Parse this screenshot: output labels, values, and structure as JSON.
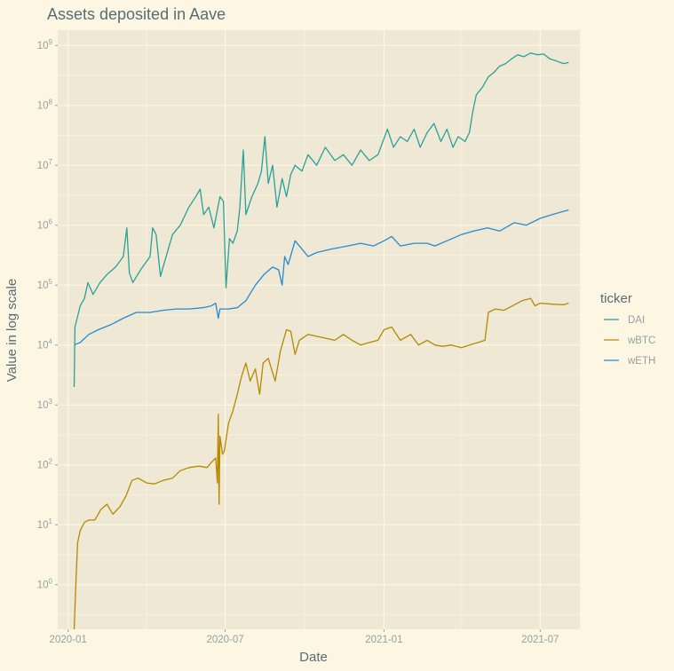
{
  "chart_data": {
    "type": "line",
    "title": "Assets deposited in Aave",
    "xlabel": "Date",
    "ylabel": "Value in log scale",
    "y_scale": "log10",
    "ylim": [
      0.18,
      1800000000
    ],
    "xlim": [
      "2019-12-20",
      "2021-08-16"
    ],
    "grid": true,
    "x_ticks": [
      "2020-01",
      "2020-07",
      "2021-01",
      "2021-07"
    ],
    "y_ticks": [
      {
        "base": "10",
        "exp": "0",
        "value": 1
      },
      {
        "base": "10",
        "exp": "1",
        "value": 10
      },
      {
        "base": "10",
        "exp": "2",
        "value": 100
      },
      {
        "base": "10",
        "exp": "3",
        "value": 1000
      },
      {
        "base": "10",
        "exp": "4",
        "value": 10000
      },
      {
        "base": "10",
        "exp": "5",
        "value": 100000
      },
      {
        "base": "10",
        "exp": "6",
        "value": 1000000
      },
      {
        "base": "10",
        "exp": "7",
        "value": 10000000
      },
      {
        "base": "10",
        "exp": "8",
        "value": 100000000
      },
      {
        "base": "10",
        "exp": "9",
        "value": 1000000000
      }
    ],
    "legend": {
      "title": "ticker",
      "position": "right"
    },
    "series": [
      {
        "name": "DAI",
        "color": "#2aa198",
        "points": [
          [
            "2020-01-08",
            2000
          ],
          [
            "2020-01-09",
            20000
          ],
          [
            "2020-01-12",
            30000
          ],
          [
            "2020-01-15",
            45000
          ],
          [
            "2020-01-20",
            60000
          ],
          [
            "2020-01-24",
            110000
          ],
          [
            "2020-01-30",
            70000
          ],
          [
            "2020-02-07",
            110000
          ],
          [
            "2020-02-15",
            150000
          ],
          [
            "2020-02-25",
            200000
          ],
          [
            "2020-03-05",
            300000
          ],
          [
            "2020-03-09",
            900000
          ],
          [
            "2020-03-12",
            160000
          ],
          [
            "2020-03-16",
            110000
          ],
          [
            "2020-03-25",
            180000
          ],
          [
            "2020-04-05",
            300000
          ],
          [
            "2020-04-08",
            900000
          ],
          [
            "2020-04-12",
            700000
          ],
          [
            "2020-04-17",
            140000
          ],
          [
            "2020-04-22",
            250000
          ],
          [
            "2020-05-01",
            700000
          ],
          [
            "2020-05-10",
            1000000
          ],
          [
            "2020-05-20",
            2000000
          ],
          [
            "2020-05-28",
            3000000
          ],
          [
            "2020-06-02",
            4000000
          ],
          [
            "2020-06-06",
            1500000
          ],
          [
            "2020-06-12",
            2000000
          ],
          [
            "2020-06-18",
            900000
          ],
          [
            "2020-06-25",
            3000000
          ],
          [
            "2020-06-29",
            2500000
          ],
          [
            "2020-07-02",
            90000
          ],
          [
            "2020-07-06",
            600000
          ],
          [
            "2020-07-10",
            500000
          ],
          [
            "2020-07-15",
            800000
          ],
          [
            "2020-07-18",
            2000000
          ],
          [
            "2020-07-22",
            18000000
          ],
          [
            "2020-07-25",
            1500000
          ],
          [
            "2020-08-01",
            3000000
          ],
          [
            "2020-08-08",
            5000000
          ],
          [
            "2020-08-12",
            8000000
          ],
          [
            "2020-08-16",
            30000000
          ],
          [
            "2020-08-20",
            5000000
          ],
          [
            "2020-08-25",
            10000000
          ],
          [
            "2020-08-30",
            2000000
          ],
          [
            "2020-09-05",
            6000000
          ],
          [
            "2020-09-10",
            3000000
          ],
          [
            "2020-09-15",
            7000000
          ],
          [
            "2020-09-20",
            10000000
          ],
          [
            "2020-09-28",
            8000000
          ],
          [
            "2020-10-05",
            15000000
          ],
          [
            "2020-10-15",
            10000000
          ],
          [
            "2020-10-25",
            20000000
          ],
          [
            "2020-11-05",
            12000000
          ],
          [
            "2020-11-15",
            15000000
          ],
          [
            "2020-11-25",
            10000000
          ],
          [
            "2020-12-05",
            18000000
          ],
          [
            "2020-12-15",
            12000000
          ],
          [
            "2020-12-25",
            15000000
          ],
          [
            "2021-01-05",
            40000000
          ],
          [
            "2021-01-12",
            20000000
          ],
          [
            "2021-01-20",
            30000000
          ],
          [
            "2021-01-28",
            25000000
          ],
          [
            "2021-02-05",
            40000000
          ],
          [
            "2021-02-12",
            20000000
          ],
          [
            "2021-02-20",
            35000000
          ],
          [
            "2021-02-28",
            50000000
          ],
          [
            "2021-03-08",
            25000000
          ],
          [
            "2021-03-15",
            40000000
          ],
          [
            "2021-03-22",
            20000000
          ],
          [
            "2021-03-28",
            30000000
          ],
          [
            "2021-04-05",
            25000000
          ],
          [
            "2021-04-10",
            35000000
          ],
          [
            "2021-04-14",
            80000000
          ],
          [
            "2021-04-18",
            150000000
          ],
          [
            "2021-04-25",
            200000000
          ],
          [
            "2021-05-02",
            300000000
          ],
          [
            "2021-05-08",
            350000000
          ],
          [
            "2021-05-15",
            450000000
          ],
          [
            "2021-05-22",
            500000000
          ],
          [
            "2021-05-29",
            600000000
          ],
          [
            "2021-06-05",
            700000000
          ],
          [
            "2021-06-12",
            650000000
          ],
          [
            "2021-06-20",
            750000000
          ],
          [
            "2021-06-28",
            700000000
          ],
          [
            "2021-07-05",
            720000000
          ],
          [
            "2021-07-12",
            600000000
          ],
          [
            "2021-07-20",
            550000000
          ],
          [
            "2021-07-28",
            500000000
          ],
          [
            "2021-08-03",
            520000000
          ]
        ]
      },
      {
        "name": "wBTC",
        "color": "#b58900",
        "points": [
          [
            "2020-01-08",
            0.18
          ],
          [
            "2020-01-10",
            1
          ],
          [
            "2020-01-12",
            5
          ],
          [
            "2020-01-15",
            8
          ],
          [
            "2020-01-20",
            11
          ],
          [
            "2020-01-25",
            12
          ],
          [
            "2020-02-01",
            12
          ],
          [
            "2020-02-08",
            18
          ],
          [
            "2020-02-15",
            22
          ],
          [
            "2020-02-22",
            15
          ],
          [
            "2020-03-01",
            20
          ],
          [
            "2020-03-08",
            30
          ],
          [
            "2020-03-15",
            55
          ],
          [
            "2020-03-22",
            60
          ],
          [
            "2020-04-01",
            50
          ],
          [
            "2020-04-10",
            48
          ],
          [
            "2020-04-20",
            55
          ],
          [
            "2020-05-01",
            60
          ],
          [
            "2020-05-10",
            80
          ],
          [
            "2020-05-20",
            90
          ],
          [
            "2020-06-01",
            95
          ],
          [
            "2020-06-10",
            90
          ],
          [
            "2020-06-15",
            110
          ],
          [
            "2020-06-20",
            130
          ],
          [
            "2020-06-22",
            50
          ],
          [
            "2020-06-23",
            700
          ],
          [
            "2020-06-24",
            22
          ],
          [
            "2020-06-25",
            300
          ],
          [
            "2020-06-28",
            150
          ],
          [
            "2020-06-30",
            170
          ],
          [
            "2020-07-05",
            500
          ],
          [
            "2020-07-10",
            800
          ],
          [
            "2020-07-15",
            1500
          ],
          [
            "2020-07-20",
            3000
          ],
          [
            "2020-07-25",
            5000
          ],
          [
            "2020-07-30",
            2500
          ],
          [
            "2020-08-05",
            4000
          ],
          [
            "2020-08-10",
            1500
          ],
          [
            "2020-08-14",
            5000
          ],
          [
            "2020-08-20",
            6000
          ],
          [
            "2020-08-28",
            2500
          ],
          [
            "2020-09-03",
            8000
          ],
          [
            "2020-09-10",
            18000
          ],
          [
            "2020-09-15",
            17000
          ],
          [
            "2020-09-20",
            7000
          ],
          [
            "2020-09-25",
            12000
          ],
          [
            "2020-10-05",
            15000
          ],
          [
            "2020-10-15",
            14000
          ],
          [
            "2020-10-25",
            13000
          ],
          [
            "2020-11-05",
            12000
          ],
          [
            "2020-11-15",
            15000
          ],
          [
            "2020-11-25",
            12000
          ],
          [
            "2020-12-05",
            10000
          ],
          [
            "2020-12-15",
            11000
          ],
          [
            "2020-12-25",
            12000
          ],
          [
            "2021-01-01",
            18000
          ],
          [
            "2021-01-10",
            20000
          ],
          [
            "2021-01-20",
            12000
          ],
          [
            "2021-02-01",
            15000
          ],
          [
            "2021-02-10",
            10000
          ],
          [
            "2021-02-20",
            12000
          ],
          [
            "2021-03-01",
            10000
          ],
          [
            "2021-03-10",
            9500
          ],
          [
            "2021-03-20",
            10000
          ],
          [
            "2021-04-01",
            9000
          ],
          [
            "2021-04-10",
            10000
          ],
          [
            "2021-04-20",
            11000
          ],
          [
            "2021-04-28",
            12000
          ],
          [
            "2021-05-02",
            35000
          ],
          [
            "2021-05-10",
            40000
          ],
          [
            "2021-05-20",
            38000
          ],
          [
            "2021-05-30",
            45000
          ],
          [
            "2021-06-10",
            55000
          ],
          [
            "2021-06-20",
            60000
          ],
          [
            "2021-06-25",
            45000
          ],
          [
            "2021-07-01",
            50000
          ],
          [
            "2021-07-15",
            48000
          ],
          [
            "2021-07-28",
            47000
          ],
          [
            "2021-08-03",
            50000
          ]
        ]
      },
      {
        "name": "wETH",
        "color": "#268bd2",
        "points": [
          [
            "2020-01-08",
            10000
          ],
          [
            "2020-01-15",
            11000
          ],
          [
            "2020-01-25",
            15000
          ],
          [
            "2020-02-05",
            18000
          ],
          [
            "2020-02-20",
            22000
          ],
          [
            "2020-03-05",
            28000
          ],
          [
            "2020-03-20",
            35000
          ],
          [
            "2020-04-05",
            35000
          ],
          [
            "2020-04-20",
            38000
          ],
          [
            "2020-05-05",
            40000
          ],
          [
            "2020-05-20",
            40000
          ],
          [
            "2020-06-05",
            42000
          ],
          [
            "2020-06-15",
            45000
          ],
          [
            "2020-06-20",
            50000
          ],
          [
            "2020-06-23",
            28000
          ],
          [
            "2020-06-25",
            40000
          ],
          [
            "2020-07-05",
            40000
          ],
          [
            "2020-07-15",
            42000
          ],
          [
            "2020-07-25",
            55000
          ],
          [
            "2020-08-05",
            100000
          ],
          [
            "2020-08-15",
            150000
          ],
          [
            "2020-08-25",
            200000
          ],
          [
            "2020-09-01",
            180000
          ],
          [
            "2020-09-05",
            100000
          ],
          [
            "2020-09-08",
            300000
          ],
          [
            "2020-09-12",
            220000
          ],
          [
            "2020-09-20",
            550000
          ],
          [
            "2020-09-28",
            400000
          ],
          [
            "2020-10-05",
            300000
          ],
          [
            "2020-10-15",
            350000
          ],
          [
            "2020-11-01",
            400000
          ],
          [
            "2020-11-20",
            450000
          ],
          [
            "2020-12-05",
            500000
          ],
          [
            "2020-12-20",
            450000
          ],
          [
            "2021-01-01",
            550000
          ],
          [
            "2021-01-10",
            650000
          ],
          [
            "2021-01-20",
            450000
          ],
          [
            "2021-02-05",
            500000
          ],
          [
            "2021-02-20",
            500000
          ],
          [
            "2021-03-01",
            450000
          ],
          [
            "2021-03-15",
            550000
          ],
          [
            "2021-04-01",
            700000
          ],
          [
            "2021-04-15",
            800000
          ],
          [
            "2021-05-01",
            900000
          ],
          [
            "2021-05-15",
            800000
          ],
          [
            "2021-06-01",
            1100000
          ],
          [
            "2021-06-15",
            1000000
          ],
          [
            "2021-07-01",
            1300000
          ],
          [
            "2021-07-15",
            1500000
          ],
          [
            "2021-08-03",
            1800000
          ]
        ]
      }
    ]
  }
}
